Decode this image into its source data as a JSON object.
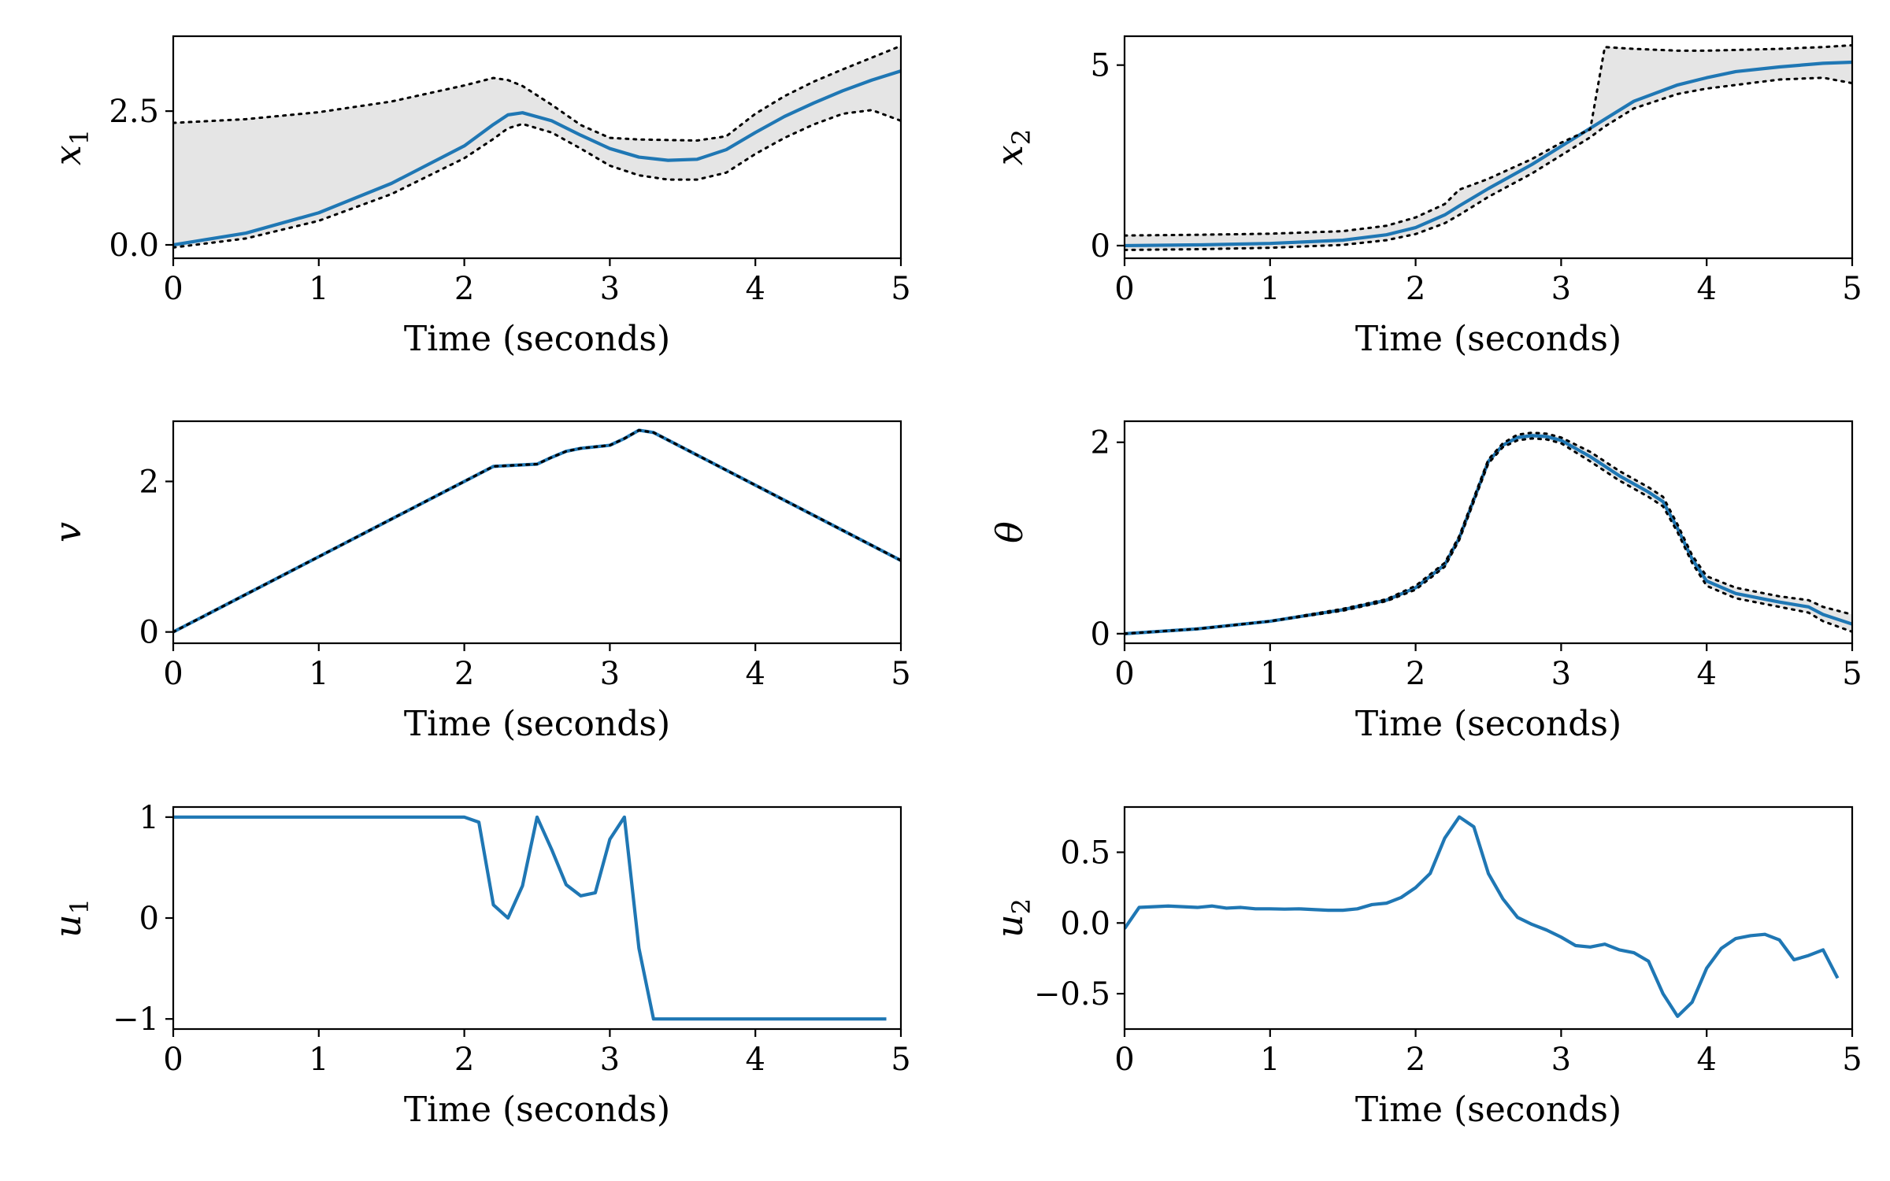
{
  "chart_data": [
    {
      "id": "x1",
      "type": "line",
      "ylabel": "x",
      "ylabel_sub": "1",
      "xlabel": "Time (seconds)",
      "xlim": [
        0,
        5
      ],
      "ylim": [
        -0.25,
        3.9
      ],
      "xticks": [
        0,
        1,
        2,
        3,
        4,
        5
      ],
      "xtick_labels": [
        "0",
        "1",
        "2",
        "3",
        "4",
        "5"
      ],
      "yticks": [
        0,
        2.5
      ],
      "ytick_labels": [
        "0.0",
        "2.5"
      ],
      "band_color": "#e5e5e5",
      "mean_color": "#1f77b4",
      "bound_color": "#000000",
      "x": [
        0,
        0.5,
        1,
        1.5,
        2,
        2.2,
        2.3,
        2.4,
        2.6,
        2.8,
        3.0,
        3.2,
        3.4,
        3.6,
        3.8,
        4.0,
        4.2,
        4.4,
        4.6,
        4.8,
        5.0
      ],
      "mean": [
        0.0,
        0.22,
        0.6,
        1.15,
        1.85,
        2.25,
        2.43,
        2.47,
        2.32,
        2.05,
        1.8,
        1.64,
        1.58,
        1.6,
        1.78,
        2.1,
        2.4,
        2.65,
        2.88,
        3.08,
        3.25
      ],
      "upper": [
        2.28,
        2.35,
        2.48,
        2.68,
        2.98,
        3.12,
        3.08,
        2.97,
        2.62,
        2.24,
        2.0,
        1.97,
        1.96,
        1.95,
        2.03,
        2.45,
        2.78,
        3.05,
        3.28,
        3.5,
        3.72
      ],
      "lower": [
        -0.05,
        0.12,
        0.45,
        0.95,
        1.62,
        1.98,
        2.18,
        2.26,
        2.1,
        1.8,
        1.48,
        1.3,
        1.22,
        1.22,
        1.35,
        1.7,
        2.0,
        2.25,
        2.45,
        2.52,
        2.32
      ]
    },
    {
      "id": "x2",
      "type": "line",
      "ylabel": "x",
      "ylabel_sub": "2",
      "xlabel": "Time (seconds)",
      "xlim": [
        0,
        5
      ],
      "ylim": [
        -0.35,
        5.8
      ],
      "xticks": [
        0,
        1,
        2,
        3,
        4,
        5
      ],
      "xtick_labels": [
        "0",
        "1",
        "2",
        "3",
        "4",
        "5"
      ],
      "yticks": [
        0,
        5
      ],
      "ytick_labels": [
        "0",
        "5"
      ],
      "band_color": "#e5e5e5",
      "mean_color": "#1f77b4",
      "bound_color": "#000000",
      "x": [
        0,
        0.5,
        1,
        1.5,
        1.8,
        2.0,
        2.2,
        2.3,
        2.5,
        2.8,
        3.0,
        3.2,
        3.3,
        3.5,
        3.8,
        4.0,
        4.2,
        4.5,
        4.8,
        5.0
      ],
      "mean": [
        0.0,
        0.02,
        0.06,
        0.15,
        0.3,
        0.5,
        0.85,
        1.1,
        1.58,
        2.25,
        2.75,
        3.25,
        3.5,
        4.0,
        4.45,
        4.65,
        4.82,
        4.95,
        5.05,
        5.08
      ],
      "upper": [
        0.28,
        0.3,
        0.33,
        0.4,
        0.55,
        0.78,
        1.15,
        1.55,
        1.85,
        2.4,
        2.85,
        3.22,
        5.5,
        5.45,
        5.4,
        5.4,
        5.42,
        5.45,
        5.5,
        5.55
      ],
      "lower": [
        -0.12,
        -0.1,
        -0.06,
        0.02,
        0.15,
        0.32,
        0.62,
        0.85,
        1.35,
        2.0,
        2.5,
        3.0,
        3.3,
        3.8,
        4.2,
        4.35,
        4.45,
        4.6,
        4.65,
        4.5
      ]
    },
    {
      "id": "v",
      "type": "line",
      "ylabel": "v",
      "ylabel_sub": "",
      "xlabel": "Time (seconds)",
      "xlim": [
        0,
        5
      ],
      "ylim": [
        -0.15,
        2.8
      ],
      "xticks": [
        0,
        1,
        2,
        3,
        4,
        5
      ],
      "xtick_labels": [
        "0",
        "1",
        "2",
        "3",
        "4",
        "5"
      ],
      "yticks": [
        0,
        2
      ],
      "ytick_labels": [
        "0",
        "2"
      ],
      "band_color": "#e5e5e5",
      "mean_color": "#1f77b4",
      "bound_color": "#000000",
      "x": [
        0,
        1,
        2,
        2.2,
        2.3,
        2.5,
        2.6,
        2.7,
        2.8,
        3.0,
        3.1,
        3.2,
        3.3,
        4.0,
        5.0
      ],
      "mean": [
        0.0,
        1.0,
        2.0,
        2.2,
        2.21,
        2.23,
        2.32,
        2.4,
        2.44,
        2.48,
        2.57,
        2.68,
        2.65,
        1.95,
        0.95
      ],
      "upper": [
        0.0,
        1.0,
        2.0,
        2.2,
        2.21,
        2.23,
        2.32,
        2.4,
        2.44,
        2.48,
        2.57,
        2.68,
        2.65,
        1.95,
        0.95
      ],
      "lower": [
        0.0,
        1.0,
        2.0,
        2.2,
        2.21,
        2.23,
        2.32,
        2.4,
        2.44,
        2.48,
        2.57,
        2.68,
        2.65,
        1.95,
        0.95
      ]
    },
    {
      "id": "theta",
      "type": "line",
      "ylabel": "θ",
      "ylabel_sub": "",
      "xlabel": "Time (seconds)",
      "xlim": [
        0,
        5
      ],
      "ylim": [
        -0.1,
        2.22
      ],
      "xticks": [
        0,
        1,
        2,
        3,
        4,
        5
      ],
      "xtick_labels": [
        "0",
        "1",
        "2",
        "3",
        "4",
        "5"
      ],
      "yticks": [
        0,
        2
      ],
      "ytick_labels": [
        "0",
        "2"
      ],
      "band_color": "#e5e5e5",
      "mean_color": "#1f77b4",
      "bound_color": "#000000",
      "x": [
        0,
        0.5,
        1.0,
        1.5,
        1.8,
        2.0,
        2.2,
        2.3,
        2.4,
        2.5,
        2.6,
        2.7,
        2.8,
        2.9,
        3.0,
        3.2,
        3.4,
        3.6,
        3.7,
        3.8,
        3.9,
        4.0,
        4.2,
        4.5,
        4.7,
        4.8,
        5.0
      ],
      "mean": [
        0.0,
        0.05,
        0.13,
        0.25,
        0.35,
        0.48,
        0.72,
        1.0,
        1.4,
        1.8,
        1.97,
        2.05,
        2.07,
        2.06,
        2.02,
        1.85,
        1.65,
        1.48,
        1.38,
        1.1,
        0.78,
        0.55,
        0.42,
        0.33,
        0.28,
        0.2,
        0.1
      ],
      "upper": [
        0.0,
        0.05,
        0.13,
        0.26,
        0.36,
        0.5,
        0.74,
        1.02,
        1.42,
        1.82,
        1.99,
        2.08,
        2.1,
        2.09,
        2.05,
        1.9,
        1.7,
        1.53,
        1.43,
        1.14,
        0.82,
        0.6,
        0.48,
        0.39,
        0.35,
        0.28,
        0.2
      ],
      "lower": [
        0.0,
        0.05,
        0.13,
        0.24,
        0.34,
        0.46,
        0.7,
        0.98,
        1.38,
        1.78,
        1.95,
        2.02,
        2.04,
        2.03,
        1.99,
        1.8,
        1.6,
        1.43,
        1.33,
        1.06,
        0.74,
        0.5,
        0.37,
        0.28,
        0.22,
        0.13,
        0.02
      ]
    },
    {
      "id": "u1",
      "type": "line",
      "ylabel": "u",
      "ylabel_sub": "1",
      "xlabel": "Time (seconds)",
      "xlim": [
        0,
        5
      ],
      "ylim": [
        -1.1,
        1.1
      ],
      "xticks": [
        0,
        1,
        2,
        3,
        4,
        5
      ],
      "xtick_labels": [
        "0",
        "1",
        "2",
        "3",
        "4",
        "5"
      ],
      "yticks": [
        -1,
        0,
        1
      ],
      "ytick_labels": [
        "−1",
        "0",
        "1"
      ],
      "mean_color": "#1f77b4",
      "x": [
        0,
        0.1,
        0.2,
        0.3,
        0.4,
        0.5,
        0.6,
        0.7,
        0.8,
        0.9,
        1.0,
        1.1,
        1.2,
        1.3,
        1.4,
        1.5,
        1.6,
        1.7,
        1.8,
        1.9,
        2.0,
        2.1,
        2.2,
        2.3,
        2.4,
        2.5,
        2.6,
        2.7,
        2.8,
        2.9,
        3.0,
        3.1,
        3.2,
        3.3,
        3.4,
        3.5,
        3.6,
        3.7,
        3.8,
        3.9,
        4.0,
        4.1,
        4.2,
        4.3,
        4.4,
        4.5,
        4.6,
        4.7,
        4.8,
        4.9
      ],
      "mean": [
        1,
        1,
        1,
        1,
        1,
        1,
        1,
        1,
        1,
        1,
        1,
        1,
        1,
        1,
        1,
        1,
        1,
        1,
        1,
        1,
        1,
        0.95,
        0.13,
        0.0,
        0.32,
        1.0,
        0.68,
        0.33,
        0.22,
        0.25,
        0.78,
        1.0,
        -0.3,
        -1.0,
        -1.0,
        -1.0,
        -1.0,
        -1.0,
        -1.0,
        -1.0,
        -1.0,
        -1.0,
        -1.0,
        -1.0,
        -1.0,
        -1.0,
        -1.0,
        -1.0,
        -1.0,
        -1.0
      ]
    },
    {
      "id": "u2",
      "type": "line",
      "ylabel": "u",
      "ylabel_sub": "2",
      "xlabel": "Time (seconds)",
      "xlim": [
        0,
        5
      ],
      "ylim": [
        -0.75,
        0.82
      ],
      "xticks": [
        0,
        1,
        2,
        3,
        4,
        5
      ],
      "xtick_labels": [
        "0",
        "1",
        "2",
        "3",
        "4",
        "5"
      ],
      "yticks": [
        -0.5,
        0.0,
        0.5
      ],
      "ytick_labels": [
        "−0.5",
        "0.0",
        "0.5"
      ],
      "mean_color": "#1f77b4",
      "x": [
        0,
        0.1,
        0.2,
        0.3,
        0.4,
        0.5,
        0.6,
        0.7,
        0.8,
        0.9,
        1.0,
        1.1,
        1.2,
        1.3,
        1.4,
        1.5,
        1.6,
        1.7,
        1.8,
        1.9,
        2.0,
        2.1,
        2.2,
        2.3,
        2.4,
        2.5,
        2.6,
        2.7,
        2.8,
        2.9,
        3.0,
        3.1,
        3.2,
        3.3,
        3.4,
        3.5,
        3.6,
        3.7,
        3.8,
        3.9,
        4.0,
        4.1,
        4.2,
        4.3,
        4.4,
        4.5,
        4.6,
        4.7,
        4.8,
        4.9
      ],
      "mean": [
        -0.04,
        0.11,
        0.115,
        0.12,
        0.115,
        0.11,
        0.12,
        0.105,
        0.11,
        0.1,
        0.1,
        0.098,
        0.1,
        0.095,
        0.09,
        0.09,
        0.1,
        0.13,
        0.14,
        0.18,
        0.25,
        0.35,
        0.6,
        0.75,
        0.68,
        0.35,
        0.17,
        0.04,
        -0.01,
        -0.05,
        -0.1,
        -0.16,
        -0.17,
        -0.15,
        -0.19,
        -0.21,
        -0.27,
        -0.5,
        -0.66,
        -0.56,
        -0.32,
        -0.18,
        -0.11,
        -0.09,
        -0.08,
        -0.12,
        -0.26,
        -0.23,
        -0.19,
        -0.39
      ]
    }
  ]
}
